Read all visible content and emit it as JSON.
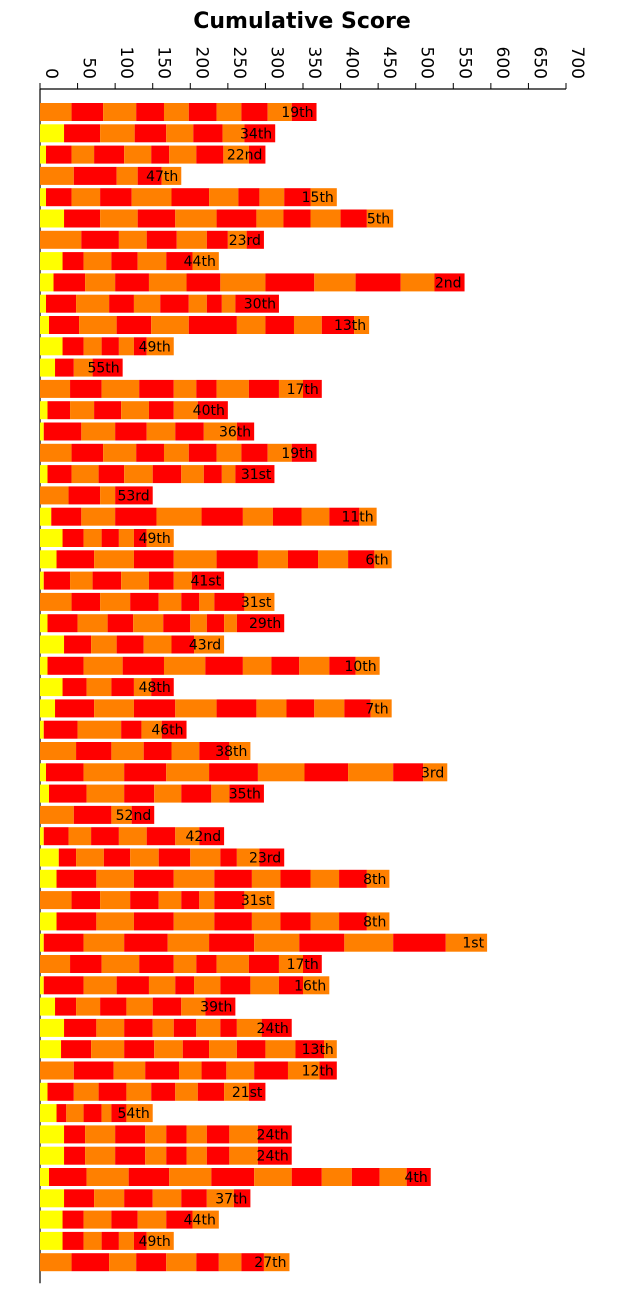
{
  "chart_data": {
    "type": "bar",
    "orientation": "horizontal",
    "stacked": true,
    "title": "Cumulative Score",
    "xlim": [
      0,
      700
    ],
    "xticks": [
      0,
      50,
      100,
      150,
      200,
      250,
      300,
      350,
      400,
      450,
      500,
      550,
      600,
      650,
      700
    ],
    "colors": {
      "yellow": "#ffff00",
      "orange": "#ff8000",
      "red": "#ff0000",
      "axis": "#000000"
    },
    "bars": [
      {
        "label": "19th",
        "segments": [
          0,
          42,
          84,
          128,
          165,
          198,
          235,
          268,
          303,
          335,
          368
        ]
      },
      {
        "label": "34th",
        "segments": [
          0,
          32,
          80,
          126,
          168,
          204,
          243,
          272,
          313
        ]
      },
      {
        "label": "22nd",
        "segments": [
          0,
          8,
          42,
          72,
          112,
          148,
          172,
          208,
          244,
          278,
          300
        ]
      },
      {
        "label": "47th",
        "segments": [
          0,
          45,
          102,
          130,
          162,
          188
        ]
      },
      {
        "label": "15th",
        "segments": [
          0,
          8,
          42,
          80,
          122,
          175,
          225,
          264,
          292,
          325,
          360,
          395
        ]
      },
      {
        "label": "5th",
        "segments": [
          0,
          32,
          80,
          130,
          180,
          235,
          288,
          324,
          360,
          400,
          435,
          470
        ]
      },
      {
        "label": "23rd",
        "segments": [
          0,
          55,
          105,
          142,
          182,
          222,
          250,
          275,
          298
        ]
      },
      {
        "label": "44th",
        "segments": [
          0,
          30,
          58,
          95,
          130,
          168,
          203,
          238
        ]
      },
      {
        "label": "2nd",
        "segments": [
          0,
          18,
          60,
          100,
          145,
          195,
          240,
          300,
          365,
          420,
          480,
          525,
          565
        ]
      },
      {
        "label": "30th",
        "segments": [
          0,
          8,
          48,
          92,
          125,
          160,
          198,
          222,
          242,
          260,
          318
        ]
      },
      {
        "label": "13th",
        "segments": [
          0,
          12,
          52,
          102,
          148,
          198,
          262,
          300,
          338,
          375,
          418,
          438
        ]
      },
      {
        "label": "49th",
        "segments": [
          0,
          30,
          58,
          82,
          105,
          125,
          142,
          178
        ]
      },
      {
        "label": "55th",
        "segments": [
          0,
          20,
          45,
          70,
          110
        ]
      },
      {
        "label": "17th",
        "segments": [
          0,
          40,
          82,
          132,
          178,
          208,
          235,
          278,
          318,
          350,
          375
        ]
      },
      {
        "label": "40th",
        "segments": [
          0,
          10,
          40,
          72,
          108,
          145,
          178,
          210,
          250
        ]
      },
      {
        "label": "36th",
        "segments": [
          0,
          5,
          55,
          100,
          142,
          180,
          218,
          262,
          285
        ]
      },
      {
        "label": "19th",
        "segments": [
          0,
          42,
          84,
          128,
          165,
          198,
          235,
          268,
          303,
          335,
          368
        ]
      },
      {
        "label": "31st",
        "segments": [
          0,
          10,
          42,
          78,
          112,
          150,
          188,
          218,
          242,
          260,
          312
        ]
      },
      {
        "label": "53rd",
        "segments": [
          0,
          38,
          80,
          100,
          150
        ]
      },
      {
        "label": "11th",
        "segments": [
          0,
          15,
          55,
          100,
          155,
          215,
          270,
          310,
          348,
          385,
          425,
          448
        ]
      },
      {
        "label": "49th",
        "segments": [
          0,
          30,
          58,
          82,
          105,
          125,
          142,
          178
        ]
      },
      {
        "label": "6th",
        "segments": [
          0,
          22,
          72,
          125,
          178,
          235,
          290,
          330,
          370,
          410,
          445,
          468
        ]
      },
      {
        "label": "41st",
        "segments": [
          0,
          5,
          40,
          70,
          108,
          145,
          178,
          202,
          245
        ]
      },
      {
        "label": "31st",
        "segments": [
          0,
          42,
          80,
          120,
          158,
          188,
          212,
          232,
          272,
          312
        ]
      },
      {
        "label": "29th",
        "segments": [
          0,
          10,
          50,
          90,
          124,
          164,
          200,
          222,
          245,
          262,
          325
        ]
      },
      {
        "label": "43rd",
        "segments": [
          0,
          32,
          68,
          102,
          138,
          175,
          205,
          245
        ]
      },
      {
        "label": "10th",
        "segments": [
          0,
          10,
          58,
          110,
          165,
          220,
          270,
          308,
          345,
          385,
          420,
          452
        ]
      },
      {
        "label": "48th",
        "segments": [
          0,
          30,
          62,
          95,
          125,
          148,
          178
        ]
      },
      {
        "label": "7th",
        "segments": [
          0,
          20,
          72,
          125,
          180,
          235,
          288,
          328,
          365,
          405,
          440,
          468
        ]
      },
      {
        "label": "46th",
        "segments": [
          0,
          5,
          50,
          108,
          135,
          162,
          195
        ]
      },
      {
        "label": "38th",
        "segments": [
          0,
          48,
          95,
          138,
          175,
          212,
          252,
          280
        ]
      },
      {
        "label": "3rd",
        "segments": [
          0,
          8,
          58,
          112,
          168,
          225,
          290,
          352,
          410,
          470,
          510,
          542
        ]
      },
      {
        "label": "35th",
        "segments": [
          0,
          12,
          62,
          112,
          152,
          188,
          228,
          252,
          298
        ]
      },
      {
        "label": "52nd",
        "segments": [
          0,
          45,
          95,
          122,
          152
        ]
      },
      {
        "label": "42nd",
        "segments": [
          0,
          5,
          38,
          68,
          105,
          142,
          180,
          212,
          245
        ]
      },
      {
        "label": "23rd",
        "segments": [
          0,
          25,
          48,
          85,
          120,
          158,
          200,
          240,
          262,
          292,
          325
        ]
      },
      {
        "label": "8th",
        "segments": [
          0,
          22,
          75,
          125,
          178,
          232,
          282,
          320,
          360,
          398,
          435,
          465
        ]
      },
      {
        "label": "31st",
        "segments": [
          0,
          42,
          80,
          120,
          158,
          188,
          212,
          232,
          272,
          312
        ]
      },
      {
        "label": "8th",
        "segments": [
          0,
          22,
          75,
          125,
          178,
          232,
          282,
          320,
          360,
          398,
          435,
          465
        ]
      },
      {
        "label": "1st",
        "segments": [
          0,
          5,
          58,
          112,
          170,
          225,
          285,
          345,
          405,
          470,
          540,
          595
        ]
      },
      {
        "label": "17th",
        "segments": [
          0,
          40,
          82,
          132,
          178,
          208,
          235,
          278,
          318,
          350,
          375
        ]
      },
      {
        "label": "16th",
        "segments": [
          0,
          5,
          58,
          102,
          145,
          180,
          205,
          240,
          280,
          318,
          350,
          385
        ]
      },
      {
        "label": "39th",
        "segments": [
          0,
          20,
          48,
          80,
          115,
          150,
          188,
          220,
          260
        ]
      },
      {
        "label": "24th",
        "segments": [
          0,
          32,
          75,
          112,
          150,
          178,
          208,
          240,
          262,
          295,
          335
        ]
      },
      {
        "label": "13th",
        "segments": [
          0,
          28,
          68,
          112,
          152,
          190,
          225,
          262,
          300,
          340,
          378,
          395
        ]
      },
      {
        "label": "12th",
        "segments": [
          0,
          45,
          98,
          140,
          185,
          215,
          248,
          285,
          330,
          372,
          395
        ]
      },
      {
        "label": "21st",
        "segments": [
          0,
          10,
          45,
          78,
          115,
          148,
          180,
          210,
          245,
          278,
          300
        ]
      },
      {
        "label": "54th",
        "segments": [
          0,
          22,
          35,
          58,
          82,
          95,
          115,
          150
        ]
      },
      {
        "label": "24th",
        "segments": [
          0,
          32,
          60,
          100,
          140,
          168,
          195,
          222,
          252,
          290,
          335
        ]
      },
      {
        "label": "24th",
        "segments": [
          0,
          32,
          60,
          100,
          140,
          168,
          195,
          222,
          252,
          290,
          335
        ]
      },
      {
        "label": "4th",
        "segments": [
          0,
          12,
          62,
          118,
          172,
          228,
          285,
          335,
          375,
          415,
          452,
          488,
          520
        ]
      },
      {
        "label": "37th",
        "segments": [
          0,
          32,
          72,
          112,
          150,
          188,
          222,
          258,
          280
        ]
      },
      {
        "label": "44th",
        "segments": [
          0,
          30,
          58,
          95,
          130,
          168,
          203,
          238
        ]
      },
      {
        "label": "49th",
        "segments": [
          0,
          30,
          58,
          82,
          105,
          125,
          142,
          178
        ]
      },
      {
        "label": "27th",
        "segments": [
          0,
          42,
          92,
          128,
          168,
          208,
          238,
          268,
          298,
          332
        ]
      }
    ]
  }
}
